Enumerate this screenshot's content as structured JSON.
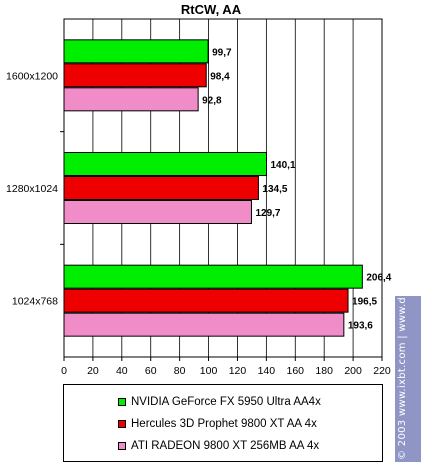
{
  "chart_data": {
    "type": "bar",
    "orientation": "horizontal",
    "title": "RtCW, AA",
    "categories": [
      "1600x1200",
      "1280x1024",
      "1024x768"
    ],
    "series": [
      {
        "name": "NVIDIA GeForce FX 5950 Ultra AA4x",
        "color": "#00ee00",
        "values": [
          99.7,
          140.1,
          206.4
        ],
        "labels": [
          "99,7",
          "140,1",
          "206,4"
        ]
      },
      {
        "name": "Hercules 3D Prophet 9800 XT AA 4x",
        "color": "#ee0000",
        "values": [
          98.4,
          134.5,
          196.5
        ],
        "labels": [
          "98,4",
          "134,5",
          "196,5"
        ]
      },
      {
        "name": "ATI RADEON 9800 XT 256MB AA 4x",
        "color": "#f08cc8",
        "values": [
          92.8,
          129.7,
          193.6
        ],
        "labels": [
          "92,8",
          "129,7",
          "193,6"
        ]
      }
    ],
    "xlim": [
      0,
      220
    ],
    "xticks": [
      0,
      20,
      40,
      60,
      80,
      100,
      120,
      140,
      160,
      180,
      200,
      220
    ],
    "grid": true,
    "legend": "bottom"
  },
  "watermark": {
    "text": "© 2003 www.ixbt.com | www.digit-life.com"
  }
}
